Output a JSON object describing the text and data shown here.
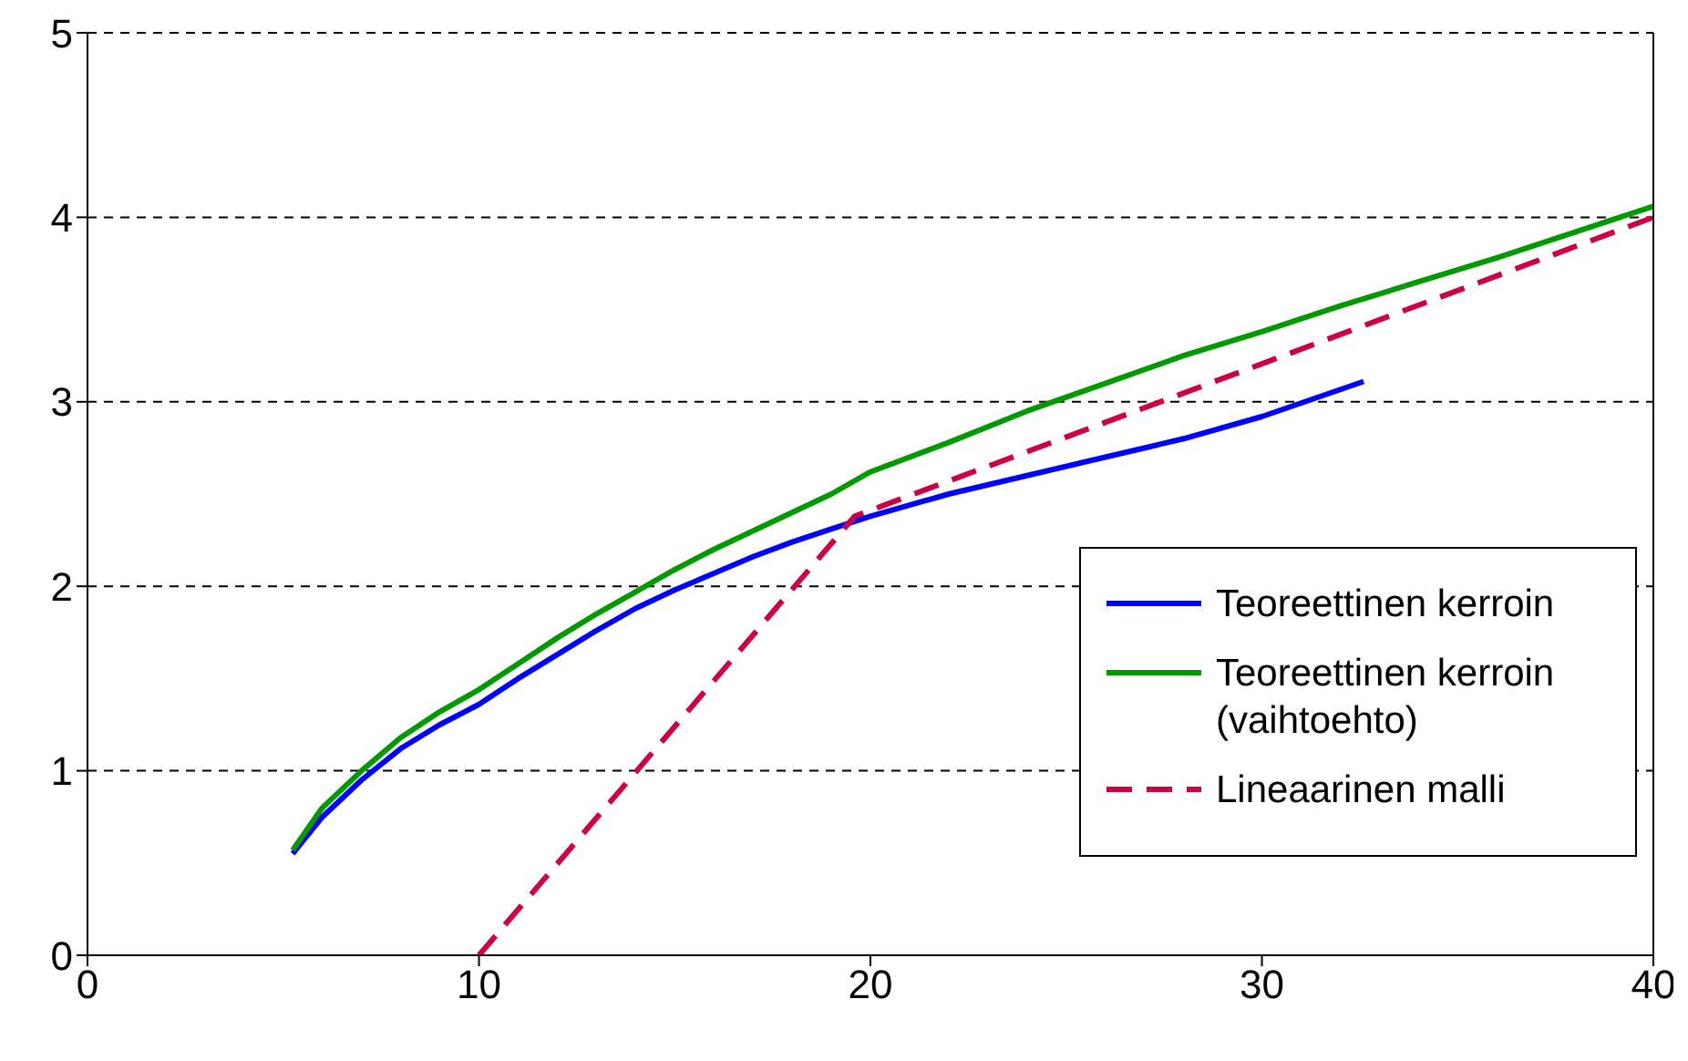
{
  "chart_data": {
    "type": "line",
    "xlim": [
      0,
      40
    ],
    "xticks": [
      0,
      10,
      20,
      30,
      40
    ],
    "ylim": [
      0,
      5
    ],
    "yticks": [
      0,
      1,
      2,
      3,
      4,
      5
    ],
    "grid": "y",
    "legend": "right",
    "marker": "none",
    "series": [
      {
        "name": "Teoreettinen kerroin",
        "color": "#0000ff",
        "line_style": "solid",
        "x": [
          5.24,
          6,
          7,
          8,
          9,
          10,
          11,
          12,
          13,
          14,
          15,
          16,
          17,
          18,
          19,
          20,
          22,
          24,
          26,
          28,
          30,
          32.6
        ],
        "values": [
          0.55,
          0.75,
          0.95,
          1.12,
          1.25,
          1.36,
          1.5,
          1.63,
          1.76,
          1.88,
          1.98,
          2.07,
          2.16,
          2.24,
          2.31,
          2.38,
          2.5,
          2.6,
          2.7,
          2.8,
          2.92,
          3.11
        ]
      },
      {
        "name": "Teoreettinen kerroin (vaihtoehto)",
        "color": "#009900",
        "line_style": "solid",
        "x": [
          5.24,
          6,
          7,
          8,
          9,
          10,
          11,
          12,
          13,
          14,
          15,
          16,
          17,
          18,
          19,
          20,
          22,
          24,
          26,
          28,
          30,
          32,
          34,
          36,
          38,
          40
        ],
        "values": [
          0.57,
          0.8,
          1.0,
          1.18,
          1.32,
          1.44,
          1.58,
          1.72,
          1.85,
          1.97,
          2.09,
          2.2,
          2.3,
          2.4,
          2.5,
          2.62,
          2.78,
          2.95,
          3.1,
          3.25,
          3.38,
          3.52,
          3.65,
          3.78,
          3.92,
          4.06
        ]
      },
      {
        "name": "Lineaarinen malli",
        "color": "#cc0044",
        "line_style": "dashed",
        "x": [
          10,
          19.6,
          40
        ],
        "values": [
          0,
          2.38,
          4.0
        ]
      }
    ]
  }
}
